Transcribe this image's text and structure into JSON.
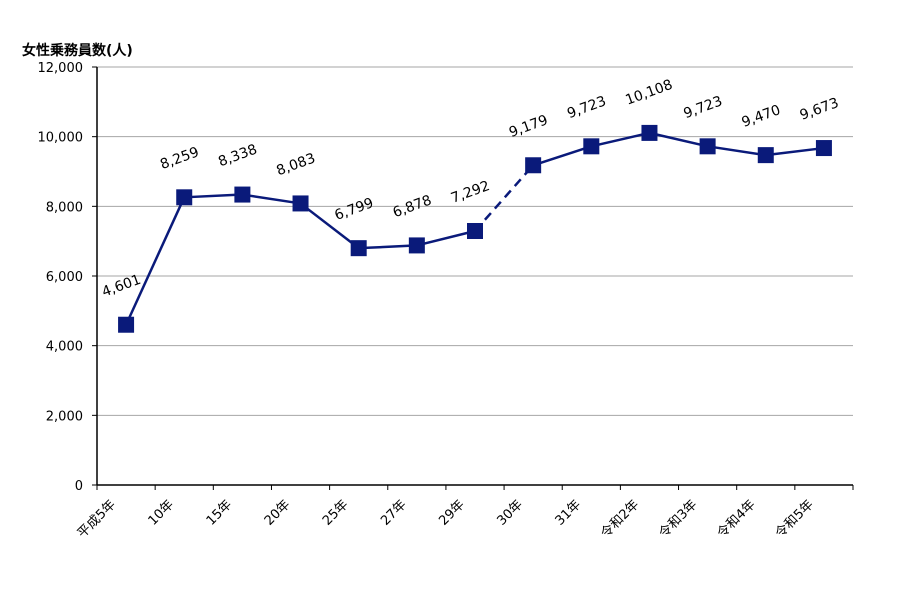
{
  "chart_data": {
    "type": "line",
    "title": "",
    "ylabel": "女性乗務員数(人)",
    "xlabel": "",
    "categories": [
      "平成5年",
      "10年",
      "15年",
      "20年",
      "25年",
      "27年",
      "29年",
      "30年",
      "31年",
      "令和2年",
      "令和3年",
      "令和4年",
      "令和5年"
    ],
    "series": [
      {
        "name": "女性乗務員数",
        "values": [
          4601,
          8259,
          8338,
          8083,
          6799,
          6878,
          7292,
          9179,
          9723,
          10108,
          9723,
          9470,
          9673
        ],
        "labels": [
          "4,601",
          "8,259",
          "8,338",
          "8,083",
          "6,799",
          "6,878",
          "7,292",
          "9,179",
          "9,723",
          "10,108",
          "9,723",
          "9,470",
          "9,673"
        ],
        "dashed_segments": [
          [
            6,
            7
          ]
        ]
      }
    ],
    "ylim": [
      0,
      12000
    ],
    "yticks": [
      0,
      2000,
      4000,
      6000,
      8000,
      10000,
      12000
    ],
    "ytick_labels": [
      "0",
      "2,000",
      "4,000",
      "6,000",
      "8,000",
      "10,000",
      "12,000"
    ],
    "grid": true,
    "legend": "none",
    "colors": {
      "series": "#0a1a7a",
      "grid": "#a6a6a6",
      "axis": "#000000"
    }
  }
}
